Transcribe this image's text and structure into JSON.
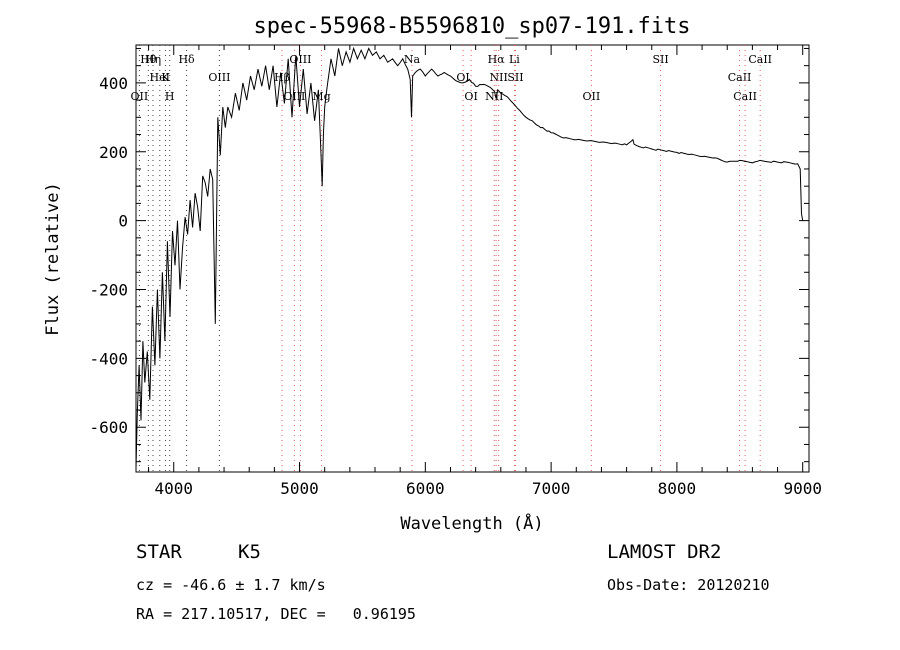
{
  "chart_data": {
    "type": "line",
    "title": "spec-55968-B5596810_sp07-191.fits",
    "xlabel": "Wavelength (Å)",
    "ylabel": "Flux (relative)",
    "xlim": [
      3700,
      9050
    ],
    "ylim": [
      -730,
      510
    ],
    "xticks": [
      4000,
      5000,
      6000,
      7000,
      8000,
      9000
    ],
    "yticks": [
      -600,
      -400,
      -200,
      0,
      200,
      400
    ],
    "grid": false,
    "series": [
      {
        "values_note": "",
        "x": [
          3700,
          3710,
          3725,
          3740,
          3755,
          3770,
          3790,
          3810,
          3830,
          3850,
          3870,
          3890,
          3910,
          3930,
          3950,
          3970,
          3990,
          4010,
          4030,
          4050,
          4070,
          4090,
          4110,
          4130,
          4150,
          4170,
          4190,
          4210,
          4230,
          4250,
          4270,
          4290,
          4310,
          4330,
          4350,
          4370,
          4390,
          4410,
          4430,
          4460,
          4490,
          4520,
          4550,
          4580,
          4610,
          4640,
          4670,
          4700,
          4730,
          4760,
          4790,
          4820,
          4850,
          4880,
          4910,
          4940,
          4970,
          5000,
          5030,
          5060,
          5090,
          5120,
          5150,
          5170,
          5180,
          5190,
          5200,
          5220,
          5250,
          5280,
          5310,
          5340,
          5370,
          5400,
          5430,
          5460,
          5490,
          5520,
          5550,
          5580,
          5610,
          5640,
          5670,
          5700,
          5740,
          5780,
          5820,
          5860,
          5880,
          5890,
          5900,
          5920,
          5960,
          6000,
          6050,
          6100,
          6150,
          6200,
          6250,
          6300,
          6350,
          6400,
          6450,
          6500,
          6550,
          6562,
          6575,
          6600,
          6650,
          6700,
          6750,
          6800,
          6850,
          6900,
          6950,
          7000,
          7100,
          7200,
          7300,
          7400,
          7500,
          7600,
          7650,
          7660,
          7700,
          7800,
          7900,
          8000,
          8100,
          8200,
          8300,
          8400,
          8500,
          8540,
          8600,
          8660,
          8700,
          8800,
          8900,
          8960,
          8980,
          8990,
          9000
        ],
        "y": [
          -720,
          -560,
          -420,
          -580,
          -350,
          -470,
          -380,
          -520,
          -250,
          -420,
          -200,
          -400,
          -150,
          -350,
          -60,
          -280,
          -30,
          -130,
          0,
          -200,
          -80,
          10,
          -40,
          60,
          -20,
          80,
          40,
          -30,
          130,
          110,
          70,
          150,
          120,
          -300,
          300,
          190,
          330,
          270,
          330,
          300,
          370,
          320,
          400,
          350,
          420,
          380,
          440,
          390,
          450,
          380,
          450,
          330,
          430,
          340,
          470,
          300,
          480,
          330,
          440,
          310,
          400,
          290,
          380,
          200,
          100,
          250,
          330,
          390,
          470,
          420,
          500,
          450,
          490,
          460,
          500,
          470,
          495,
          470,
          500,
          480,
          490,
          470,
          480,
          460,
          470,
          450,
          470,
          440,
          410,
          300,
          420,
          430,
          440,
          420,
          440,
          420,
          430,
          420,
          405,
          400,
          410,
          390,
          395,
          390,
          375,
          355,
          380,
          370,
          360,
          340,
          320,
          300,
          290,
          275,
          265,
          255,
          240,
          235,
          232,
          228,
          225,
          220,
          235,
          222,
          215,
          208,
          203,
          198,
          192,
          186,
          182,
          170,
          175,
          172,
          168,
          175,
          172,
          170,
          168,
          165,
          150,
          20,
          0
        ]
      }
    ],
    "line_markers": [
      {
        "label": "Hθ",
        "x": 3798
      },
      {
        "label": "K",
        "x": 3934
      },
      {
        "label": "OII",
        "x": 3727
      },
      {
        "label": "Hη",
        "x": 3835
      },
      {
        "label": "HeI",
        "x": 3889
      },
      {
        "label": "H",
        "x": 3968
      },
      {
        "label": "Hδ",
        "x": 4102
      },
      {
        "label": "OIII",
        "x": 4363
      },
      {
        "label": "OIII",
        "x": 4959
      },
      {
        "label": "OIII",
        "x": 5007
      },
      {
        "label": "Hβ",
        "x": 4861
      },
      {
        "label": "Mg",
        "x": 5175
      },
      {
        "label": "Na",
        "x": 5894
      },
      {
        "label": "OI",
        "x": 6300
      },
      {
        "label": "OI",
        "x": 6364
      },
      {
        "label": "Hα",
        "x": 6563
      },
      {
        "label": "NII",
        "x": 6583
      },
      {
        "label": "NII",
        "x": 6548
      },
      {
        "label": "Li",
        "x": 6708
      },
      {
        "label": "SII",
        "x": 6717
      },
      {
        "label": "OII",
        "x": 7320
      },
      {
        "label": "SII",
        "x": 7870
      },
      {
        "label": "CaII",
        "x": 8498
      },
      {
        "label": "CaII",
        "x": 8542
      },
      {
        "label": "CaII",
        "x": 8662
      }
    ]
  },
  "info": {
    "object_class": "STAR",
    "subclass": "K5",
    "survey": "LAMOST DR2",
    "cz": "cz = -46.6 ± 1.7 km/s",
    "obs_date": "Obs-Date: 20120210",
    "coords": "RA = 217.10517, DEC =   0.96195"
  }
}
